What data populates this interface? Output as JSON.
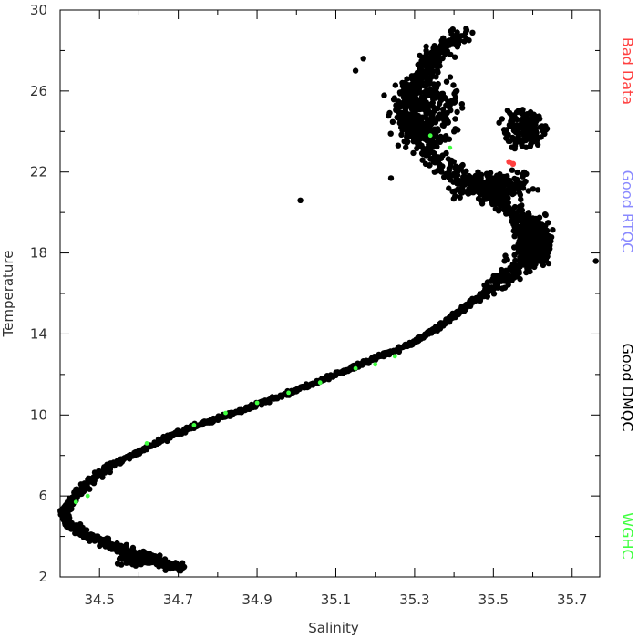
{
  "chart_data": {
    "type": "scatter",
    "title": "",
    "xlabel": "Salinity",
    "ylabel": "Temperature",
    "xlim": [
      34.4,
      35.77
    ],
    "ylim": [
      2,
      30
    ],
    "x_ticks": [
      "34.5",
      "34.7",
      "34.9",
      "35.1",
      "35.3",
      "35.5",
      "35.7"
    ],
    "y_ticks": [
      "2",
      "6",
      "10",
      "14",
      "18",
      "22",
      "26",
      "30"
    ],
    "legend_placement": "right-vertical",
    "series": [
      {
        "name": "Bad Data",
        "color": "#ff4040",
        "points": [
          [
            35.54,
            22.5
          ],
          [
            35.55,
            22.4
          ]
        ]
      },
      {
        "name": "Good RTQC",
        "color": "#8a8aff",
        "points": []
      },
      {
        "name": "Good DMQC",
        "color": "#000000",
        "curve": [
          [
            34.71,
            2.4
          ],
          [
            34.64,
            2.8
          ],
          [
            34.55,
            3.4
          ],
          [
            34.47,
            4.0
          ],
          [
            34.42,
            4.6
          ],
          [
            34.41,
            5.2
          ],
          [
            34.43,
            5.8
          ],
          [
            34.47,
            6.6
          ],
          [
            34.53,
            7.5
          ],
          [
            34.62,
            8.4
          ],
          [
            34.72,
            9.3
          ],
          [
            34.84,
            10.1
          ],
          [
            34.97,
            11.0
          ],
          [
            35.1,
            12.0
          ],
          [
            35.2,
            12.8
          ],
          [
            35.3,
            13.6
          ],
          [
            35.38,
            14.6
          ],
          [
            35.44,
            15.5
          ],
          [
            35.5,
            16.3
          ],
          [
            35.56,
            17.2
          ],
          [
            35.6,
            18.0
          ],
          [
            35.6,
            19.0
          ],
          [
            35.56,
            20.0
          ],
          [
            35.48,
            21.0
          ],
          [
            35.4,
            22.0
          ],
          [
            35.33,
            23.0
          ],
          [
            35.3,
            24.0
          ],
          [
            35.28,
            25.0
          ],
          [
            35.3,
            26.0
          ],
          [
            35.33,
            27.0
          ],
          [
            35.36,
            28.0
          ],
          [
            35.42,
            28.8
          ]
        ],
        "outliers": [
          [
            35.01,
            20.6
          ],
          [
            35.24,
            21.7
          ],
          [
            35.15,
            27.0
          ],
          [
            35.17,
            27.6
          ],
          [
            35.43,
            28.9
          ],
          [
            35.76,
            17.6
          ]
        ],
        "clusters": [
          {
            "center": [
              35.33,
              25.0
            ],
            "spread": [
              0.12,
              2.4
            ],
            "count": 260
          },
          {
            "center": [
              35.58,
              24.2
            ],
            "spread": [
              0.07,
              1.3
            ],
            "count": 140
          },
          {
            "center": [
              35.6,
              18.6
            ],
            "spread": [
              0.06,
              1.6
            ],
            "count": 420
          },
          {
            "center": [
              35.5,
              21.3
            ],
            "spread": [
              0.14,
              0.9
            ],
            "count": 240
          },
          {
            "center": [
              34.6,
              2.9
            ],
            "spread": [
              0.08,
              0.4
            ],
            "count": 140
          }
        ]
      },
      {
        "name": "WGHC",
        "color": "#40ff40",
        "points": [
          [
            35.34,
            23.8
          ],
          [
            35.39,
            23.2
          ],
          [
            34.44,
            5.7
          ],
          [
            34.47,
            6.0
          ],
          [
            34.62,
            8.6
          ],
          [
            34.74,
            9.5
          ],
          [
            34.82,
            10.1
          ],
          [
            34.9,
            10.6
          ],
          [
            34.98,
            11.1
          ],
          [
            35.06,
            11.6
          ],
          [
            35.15,
            12.3
          ],
          [
            35.25,
            12.9
          ],
          [
            35.2,
            12.5
          ]
        ]
      }
    ]
  }
}
